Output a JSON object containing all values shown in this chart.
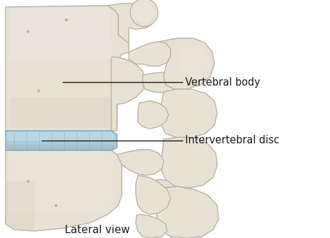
{
  "background_color": "#ffffff",
  "bone_fill": "#e8e2d5",
  "bone_shadow": "#b8b0a0",
  "bone_mid": "#d4ccbc",
  "bone_light": "#f0ece4",
  "disc_fill": "#aaccdd",
  "disc_light": "#c8dde8",
  "disc_dark": "#88aabb",
  "line_color": "#1a1a1a",
  "text_color": "#1a1a1a",
  "label_vertebral_body": "Vertebral body",
  "label_intervertebral_disc": "Intervertebral disc",
  "caption": "Lateral view",
  "label_fontsize": 10.5,
  "caption_fontsize": 11,
  "figsize": [
    4.74,
    3.42
  ],
  "dpi": 100
}
